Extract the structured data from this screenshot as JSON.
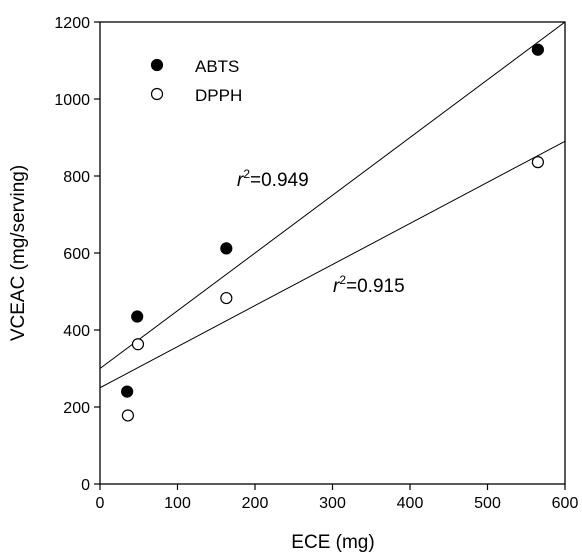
{
  "chart_data": {
    "type": "scatter",
    "xlabel": "ECE (mg)",
    "ylabel": "VCEAC (mg/serving)",
    "xlim": [
      0,
      600
    ],
    "ylim": [
      0,
      1200
    ],
    "xticks": [
      0,
      100,
      200,
      300,
      400,
      500,
      600
    ],
    "yticks": [
      0,
      200,
      400,
      600,
      800,
      1000,
      1200
    ],
    "grid": false,
    "legend_position": "top-left",
    "series": [
      {
        "name": "ABTS",
        "marker": "filled-circle",
        "color": "#000000",
        "points": [
          [
            35,
            240
          ],
          [
            48,
            435
          ],
          [
            163,
            612
          ],
          [
            565,
            1128
          ]
        ],
        "fit_line": {
          "intercept": 300,
          "slope": 1.5
        },
        "annotation": {
          "prefix": "r",
          "sup": "2",
          "text": "=0.949"
        }
      },
      {
        "name": "DPPH",
        "marker": "open-circle",
        "color": "#000000",
        "points": [
          [
            36,
            178
          ],
          [
            49,
            363
          ],
          [
            163,
            483
          ],
          [
            565,
            836
          ]
        ],
        "fit_line": {
          "intercept": 250,
          "slope": 1.067
        },
        "annotation": {
          "prefix": "r",
          "sup": "2",
          "text": "=0.915"
        }
      }
    ]
  }
}
